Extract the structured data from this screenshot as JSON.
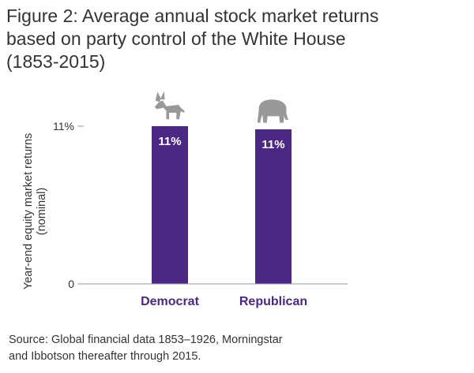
{
  "title_lines": [
    "Figure 2: Average annual stock market returns",
    "based on party control of the White House",
    "(1853-2015)"
  ],
  "source_lines": [
    "Source: Global financial data 1853–1926, Morningstar",
    "and Ibbotson thereafter through 2015."
  ],
  "colors": {
    "bar": "#4a2883",
    "icon": "#999999",
    "bar_label": "#ffffff",
    "category_label": "#4a2883",
    "axis": "#999999"
  },
  "chart_data": {
    "type": "bar",
    "categories": [
      "Democrat",
      "Republican"
    ],
    "values": [
      11,
      11
    ],
    "data_labels": [
      "11%",
      "11%"
    ],
    "category_icons": [
      "donkey-icon",
      "elephant-icon"
    ],
    "ylabel_lines": [
      "Year-end equity market returns",
      "(nominal)"
    ],
    "yticks": [
      {
        "value": 0,
        "label": "0"
      },
      {
        "value": 11,
        "label": "11%"
      }
    ],
    "ylim": [
      0,
      11
    ],
    "grid": false,
    "legend": "none"
  }
}
